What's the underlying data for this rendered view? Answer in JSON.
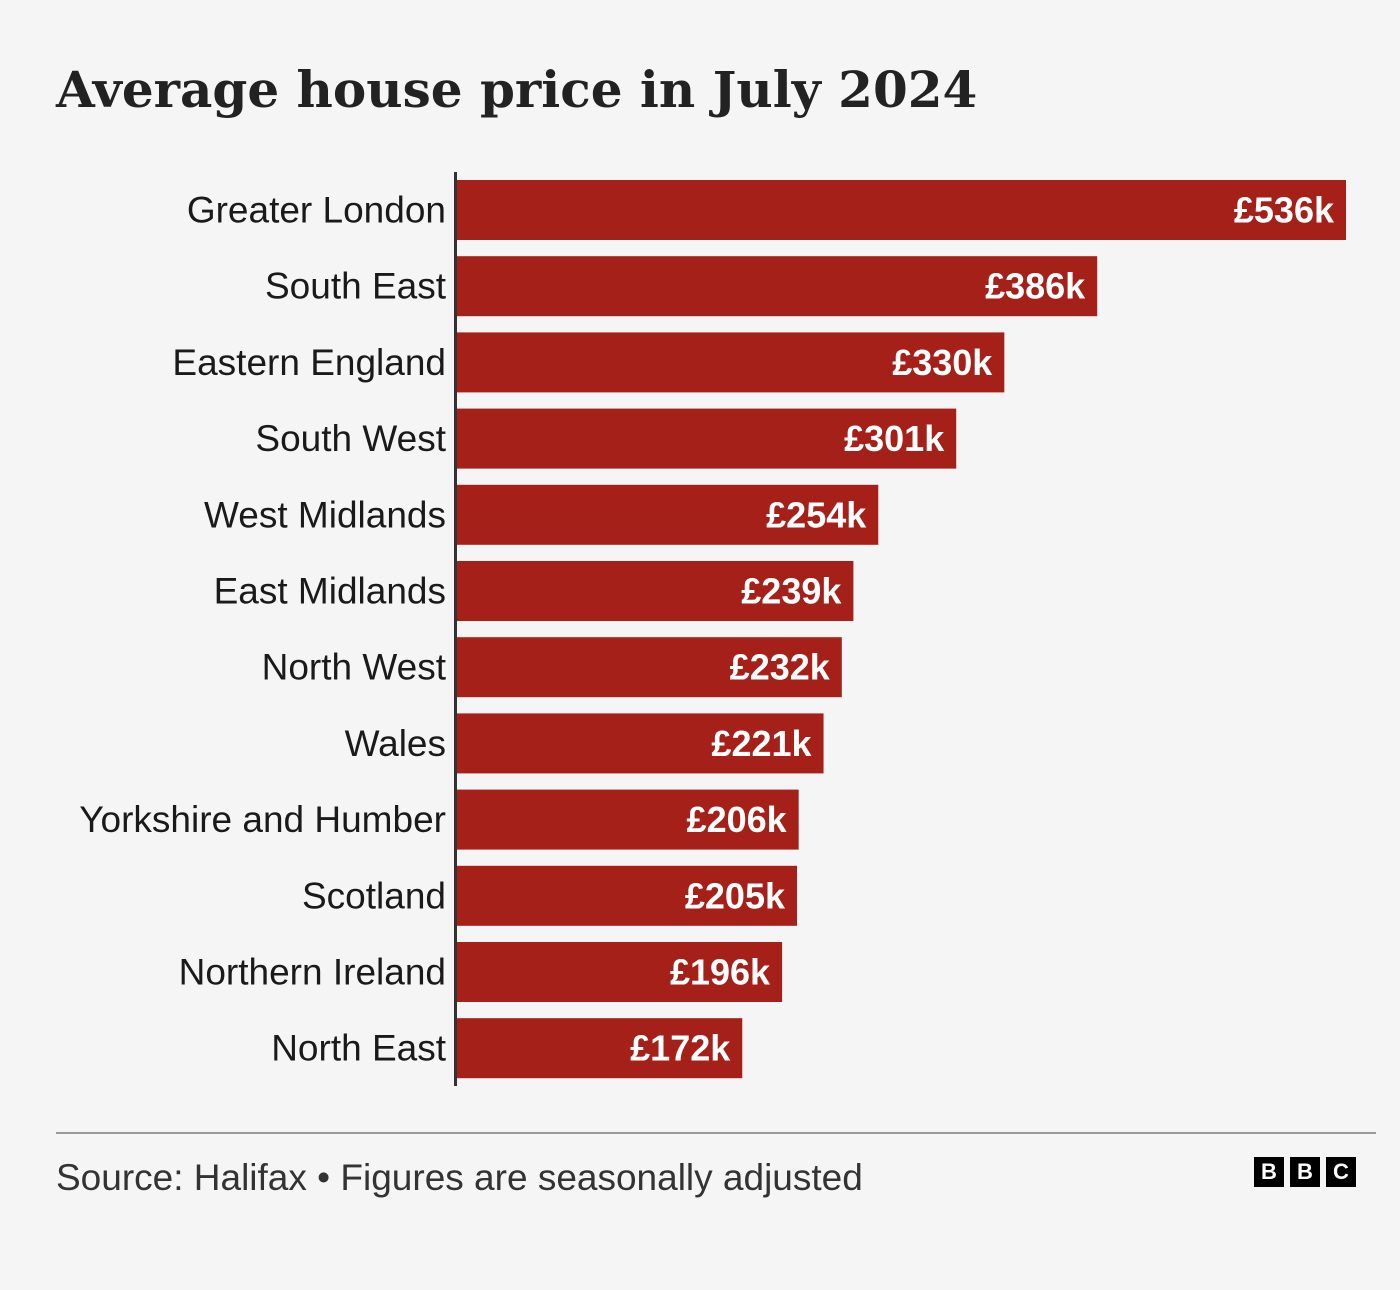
{
  "title": "Average house price in July 2024",
  "footer": {
    "note": "Source: Halifax • Figures are seasonally adjusted",
    "logo": [
      "B",
      "B",
      "C"
    ]
  },
  "colors": {
    "bar": "#a52019",
    "axis": "#333333",
    "background": "#f5f5f5"
  },
  "chart_data": {
    "type": "bar",
    "orientation": "horizontal",
    "title": "Average house price in July 2024",
    "categories": [
      "Greater London",
      "South East",
      "Eastern England",
      "South West",
      "West Midlands",
      "East Midlands",
      "North West",
      "Wales",
      "Yorkshire and Humber",
      "Scotland",
      "Northern Ireland",
      "North East"
    ],
    "values": [
      536,
      386,
      330,
      301,
      254,
      239,
      232,
      221,
      206,
      205,
      196,
      172
    ],
    "value_labels": [
      "£536k",
      "£386k",
      "£330k",
      "£301k",
      "£254k",
      "£239k",
      "£232k",
      "£221k",
      "£206k",
      "£205k",
      "£196k",
      "£172k"
    ],
    "unit": "£ thousands",
    "xlim": [
      0,
      536
    ],
    "grid": false,
    "legend": "none"
  }
}
